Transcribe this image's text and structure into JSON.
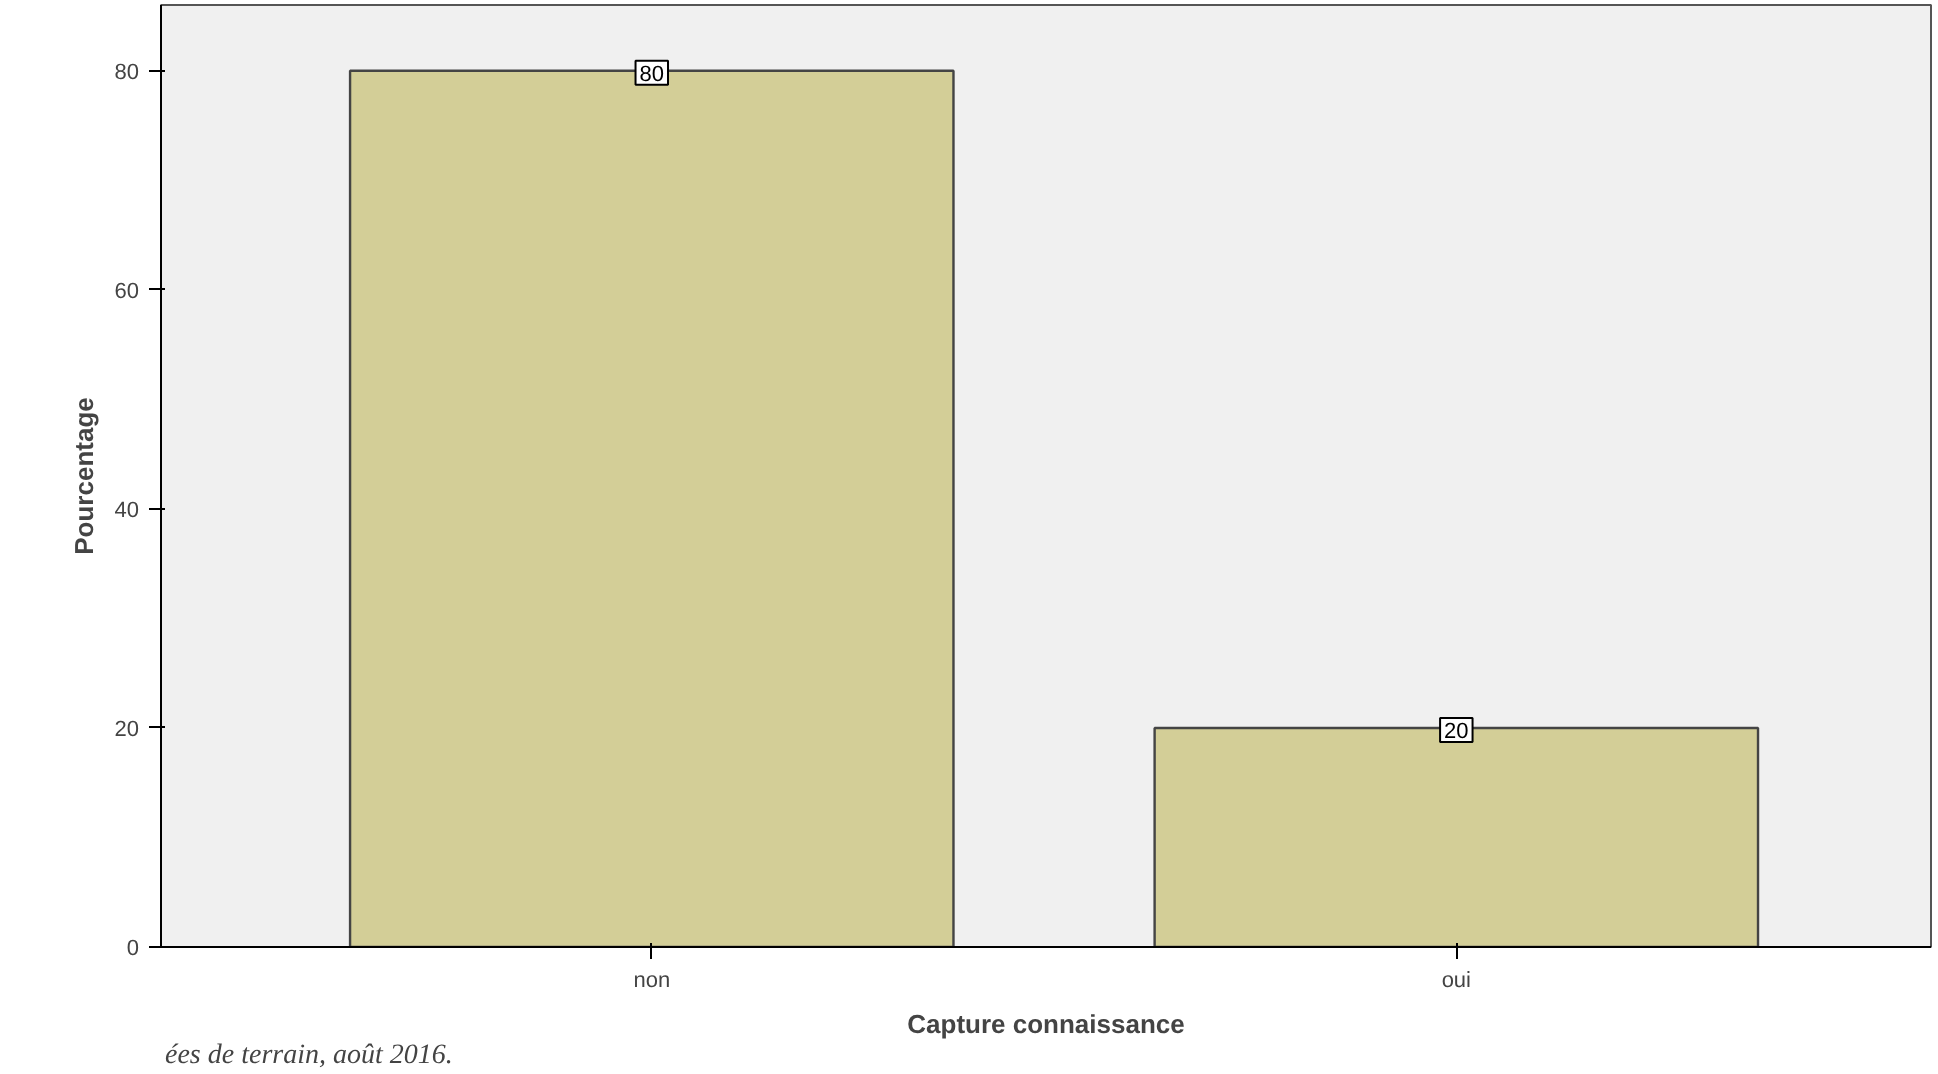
{
  "chart_data": {
    "type": "bar",
    "xlabel": "Capture connaissance",
    "ylabel": "Pourcentage",
    "categories": [
      "non",
      "oui"
    ],
    "values": [
      80,
      20
    ],
    "color": "#d3ce97",
    "ylim": [
      0,
      86
    ],
    "yticks": [
      0,
      20,
      40,
      60,
      80
    ],
    "grid": false,
    "data_labels": true,
    "annotations": [
      "ées de terrain, août 2016."
    ]
  }
}
